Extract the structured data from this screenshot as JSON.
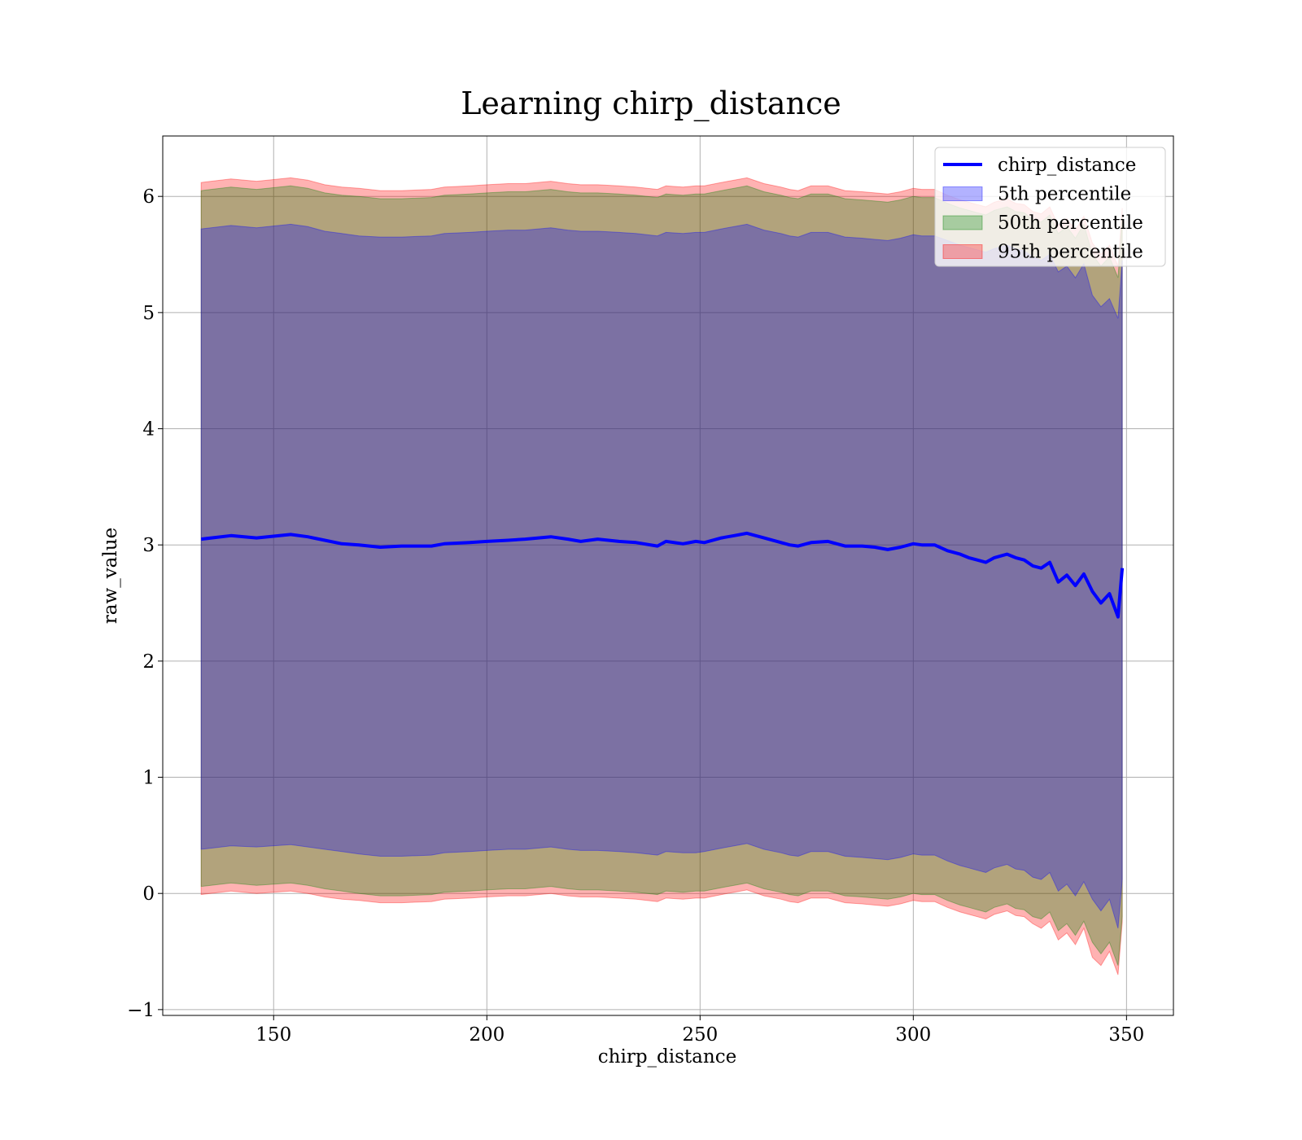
{
  "chart_data": {
    "type": "area",
    "title": "Learning chirp_distance",
    "xlabel": "chirp_distance",
    "ylabel": "raw_value",
    "xlim": [
      124,
      361
    ],
    "ylim": [
      -1.05,
      6.52
    ],
    "xticks": [
      150,
      200,
      250,
      300,
      350
    ],
    "yticks": [
      -1,
      0,
      1,
      2,
      3,
      4,
      5,
      6
    ],
    "grid": true,
    "legend_position": "top-right",
    "colors": {
      "line": "#0000ff",
      "p5": "#0000ff",
      "p50": "#008000",
      "p95": "#ff0000"
    },
    "x": [
      133,
      140,
      146,
      154,
      158,
      162,
      166,
      170,
      175,
      180,
      187,
      190,
      196,
      200,
      205,
      209,
      215,
      219,
      222,
      226,
      231,
      235,
      240,
      242,
      246,
      249,
      251,
      255,
      258,
      261,
      265,
      269,
      271,
      273,
      276,
      280,
      284,
      288,
      291,
      294,
      297,
      300,
      302,
      305,
      308,
      311,
      313,
      315,
      317,
      319,
      322,
      324,
      326,
      328,
      330,
      332,
      334,
      336,
      338,
      340,
      342,
      344,
      346,
      348,
      349
    ],
    "series": [
      {
        "name": "chirp_distance",
        "kind": "line",
        "values": [
          3.05,
          3.08,
          3.06,
          3.09,
          3.07,
          3.04,
          3.01,
          3.0,
          2.98,
          2.99,
          2.99,
          3.01,
          3.02,
          3.03,
          3.04,
          3.05,
          3.07,
          3.05,
          3.03,
          3.05,
          3.03,
          3.02,
          2.99,
          3.03,
          3.01,
          3.03,
          3.02,
          3.06,
          3.08,
          3.1,
          3.06,
          3.02,
          3.0,
          2.99,
          3.02,
          3.03,
          2.99,
          2.99,
          2.98,
          2.96,
          2.98,
          3.01,
          3.0,
          3.0,
          2.95,
          2.92,
          2.89,
          2.87,
          2.85,
          2.89,
          2.92,
          2.89,
          2.87,
          2.82,
          2.8,
          2.85,
          2.68,
          2.74,
          2.65,
          2.75,
          2.6,
          2.5,
          2.58,
          2.38,
          2.8
        ]
      },
      {
        "name": "5th percentile",
        "kind": "band",
        "lower": [
          0.38,
          0.41,
          0.4,
          0.42,
          0.4,
          0.38,
          0.36,
          0.34,
          0.32,
          0.32,
          0.33,
          0.35,
          0.36,
          0.37,
          0.38,
          0.38,
          0.4,
          0.38,
          0.37,
          0.37,
          0.36,
          0.35,
          0.33,
          0.36,
          0.35,
          0.35,
          0.36,
          0.39,
          0.41,
          0.43,
          0.38,
          0.35,
          0.33,
          0.32,
          0.36,
          0.36,
          0.32,
          0.31,
          0.3,
          0.29,
          0.31,
          0.34,
          0.33,
          0.33,
          0.28,
          0.24,
          0.22,
          0.2,
          0.18,
          0.22,
          0.25,
          0.21,
          0.2,
          0.14,
          0.12,
          0.18,
          0.02,
          0.08,
          -0.02,
          0.1,
          -0.05,
          -0.15,
          -0.05,
          -0.3,
          0.12
        ],
        "upper": [
          5.72,
          5.75,
          5.73,
          5.76,
          5.74,
          5.7,
          5.68,
          5.66,
          5.65,
          5.65,
          5.66,
          5.68,
          5.69,
          5.7,
          5.71,
          5.71,
          5.73,
          5.71,
          5.7,
          5.7,
          5.69,
          5.68,
          5.66,
          5.69,
          5.68,
          5.69,
          5.69,
          5.72,
          5.74,
          5.76,
          5.71,
          5.68,
          5.66,
          5.65,
          5.69,
          5.69,
          5.65,
          5.64,
          5.63,
          5.62,
          5.64,
          5.67,
          5.66,
          5.66,
          5.62,
          5.58,
          5.56,
          5.54,
          5.52,
          5.55,
          5.58,
          5.55,
          5.53,
          5.48,
          5.45,
          5.5,
          5.35,
          5.4,
          5.3,
          5.42,
          5.15,
          5.05,
          5.12,
          4.95,
          5.45
        ]
      },
      {
        "name": "50th percentile",
        "kind": "band",
        "lower": [
          0.06,
          0.09,
          0.07,
          0.09,
          0.07,
          0.04,
          0.02,
          0.0,
          -0.02,
          -0.02,
          -0.01,
          0.01,
          0.02,
          0.03,
          0.04,
          0.04,
          0.06,
          0.04,
          0.03,
          0.03,
          0.02,
          0.01,
          -0.01,
          0.02,
          0.01,
          0.02,
          0.02,
          0.05,
          0.07,
          0.09,
          0.04,
          0.01,
          -0.01,
          -0.02,
          0.02,
          0.02,
          -0.02,
          -0.03,
          -0.04,
          -0.05,
          -0.03,
          0.0,
          -0.01,
          -0.01,
          -0.06,
          -0.1,
          -0.12,
          -0.14,
          -0.16,
          -0.12,
          -0.09,
          -0.13,
          -0.14,
          -0.2,
          -0.22,
          -0.16,
          -0.32,
          -0.26,
          -0.36,
          -0.24,
          -0.42,
          -0.52,
          -0.42,
          -0.62,
          -0.2
        ],
        "upper": [
          6.05,
          6.08,
          6.06,
          6.09,
          6.07,
          6.03,
          6.01,
          6.0,
          5.98,
          5.98,
          5.99,
          6.01,
          6.02,
          6.03,
          6.04,
          6.04,
          6.06,
          6.04,
          6.03,
          6.03,
          6.02,
          6.01,
          5.99,
          6.02,
          6.01,
          6.02,
          6.02,
          6.05,
          6.07,
          6.09,
          6.04,
          6.01,
          5.99,
          5.98,
          6.02,
          6.02,
          5.98,
          5.97,
          5.96,
          5.95,
          5.97,
          6.0,
          5.99,
          5.99,
          5.94,
          5.9,
          5.88,
          5.86,
          5.84,
          5.88,
          5.91,
          5.87,
          5.86,
          5.8,
          5.78,
          5.84,
          5.68,
          5.74,
          5.64,
          5.76,
          5.5,
          5.4,
          5.48,
          5.3,
          5.82
        ]
      },
      {
        "name": "95th percentile",
        "kind": "band",
        "lower": [
          -0.01,
          0.02,
          0.0,
          0.02,
          0.0,
          -0.03,
          -0.05,
          -0.06,
          -0.08,
          -0.08,
          -0.07,
          -0.05,
          -0.04,
          -0.03,
          -0.02,
          -0.02,
          0.0,
          -0.02,
          -0.03,
          -0.03,
          -0.04,
          -0.05,
          -0.07,
          -0.04,
          -0.05,
          -0.04,
          -0.04,
          -0.01,
          0.01,
          0.03,
          -0.02,
          -0.05,
          -0.07,
          -0.08,
          -0.04,
          -0.04,
          -0.08,
          -0.09,
          -0.1,
          -0.11,
          -0.09,
          -0.06,
          -0.07,
          -0.07,
          -0.12,
          -0.16,
          -0.18,
          -0.2,
          -0.22,
          -0.18,
          -0.15,
          -0.19,
          -0.2,
          -0.26,
          -0.3,
          -0.24,
          -0.4,
          -0.34,
          -0.44,
          -0.3,
          -0.55,
          -0.62,
          -0.5,
          -0.7,
          -0.25
        ],
        "upper": [
          6.12,
          6.15,
          6.13,
          6.16,
          6.14,
          6.1,
          6.08,
          6.07,
          6.05,
          6.05,
          6.06,
          6.08,
          6.09,
          6.1,
          6.11,
          6.11,
          6.13,
          6.11,
          6.1,
          6.1,
          6.09,
          6.08,
          6.06,
          6.09,
          6.08,
          6.09,
          6.09,
          6.12,
          6.14,
          6.16,
          6.11,
          6.08,
          6.06,
          6.05,
          6.09,
          6.09,
          6.05,
          6.04,
          6.03,
          6.02,
          6.04,
          6.07,
          6.06,
          6.06,
          6.01,
          5.97,
          5.95,
          5.93,
          5.91,
          5.95,
          5.98,
          5.94,
          5.93,
          5.87,
          5.85,
          5.91,
          5.75,
          5.81,
          5.71,
          5.83,
          5.6,
          5.5,
          5.58,
          5.4,
          5.9
        ]
      }
    ]
  }
}
